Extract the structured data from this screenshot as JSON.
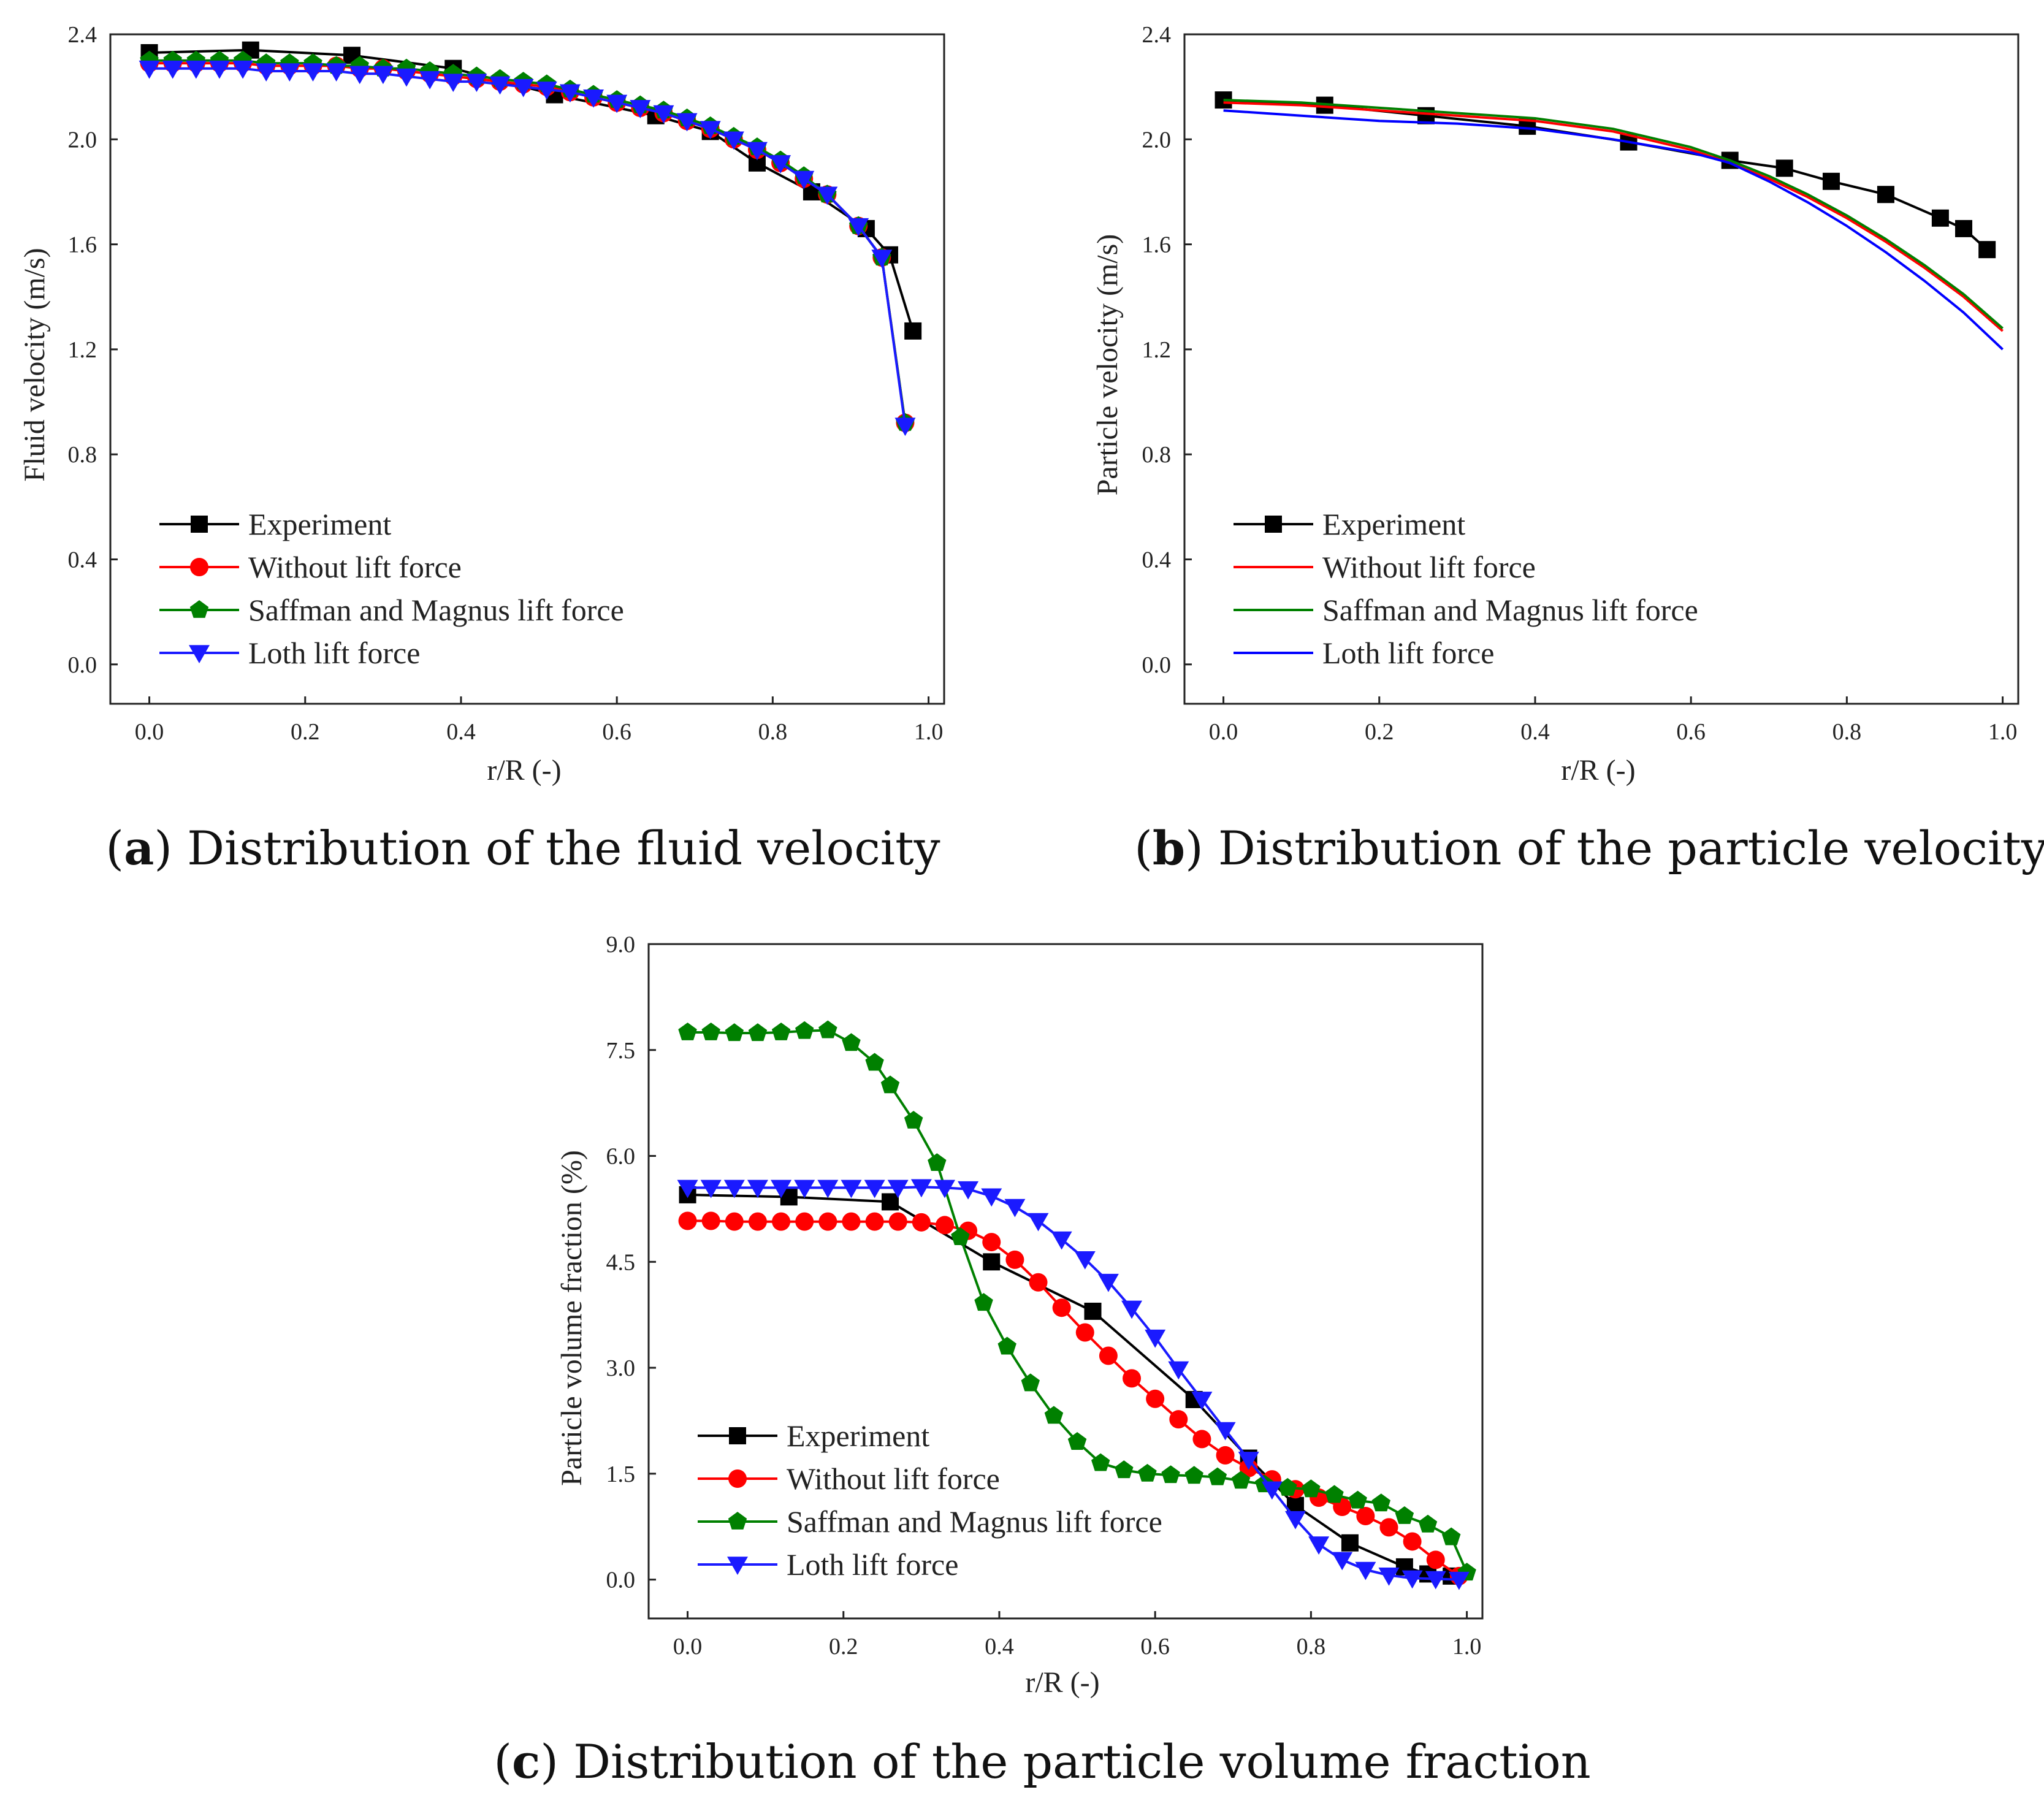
{
  "chart_data": [
    {
      "id": "a",
      "type": "line",
      "caption_letter": "a",
      "caption_text": "Distribution of the fluid velocity",
      "xlabel": "r/R (-)",
      "ylabel": "Fluid velocity (m/s)",
      "xlim": [
        -0.05,
        1.02
      ],
      "ylim": [
        -0.15,
        2.4
      ],
      "xticks": [
        "0.0",
        "0.2",
        "0.4",
        "0.6",
        "0.8",
        "1.0"
      ],
      "yticks": [
        "0.0",
        "0.4",
        "0.8",
        "1.2",
        "1.6",
        "2.0",
        "2.4"
      ],
      "legend_position": "lower-left",
      "series": [
        {
          "name": "Experiment",
          "color": "#000000",
          "marker": "square",
          "x": [
            0.0,
            0.13,
            0.26,
            0.39,
            0.52,
            0.65,
            0.72,
            0.78,
            0.85,
            0.92,
            0.95,
            0.98
          ],
          "y": [
            2.33,
            2.34,
            2.32,
            2.27,
            2.17,
            2.09,
            2.03,
            1.91,
            1.8,
            1.66,
            1.56,
            1.27
          ]
        },
        {
          "name": "Without lift force",
          "color": "#ff0000",
          "marker": "circle",
          "x": [
            0.0,
            0.03,
            0.06,
            0.09,
            0.12,
            0.15,
            0.18,
            0.21,
            0.24,
            0.27,
            0.3,
            0.33,
            0.36,
            0.39,
            0.42,
            0.45,
            0.48,
            0.51,
            0.54,
            0.57,
            0.6,
            0.63,
            0.66,
            0.69,
            0.72,
            0.75,
            0.78,
            0.81,
            0.84,
            0.87,
            0.91,
            0.94,
            0.97
          ],
          "y": [
            2.29,
            2.29,
            2.29,
            2.29,
            2.29,
            2.28,
            2.28,
            2.28,
            2.28,
            2.27,
            2.27,
            2.26,
            2.25,
            2.24,
            2.23,
            2.22,
            2.21,
            2.2,
            2.18,
            2.16,
            2.14,
            2.12,
            2.1,
            2.07,
            2.04,
            2.0,
            1.96,
            1.91,
            1.85,
            1.79,
            1.67,
            1.55,
            0.92
          ]
        },
        {
          "name": "Saffman and Magnus lift force",
          "color": "#008000",
          "marker": "pentagon",
          "x": [
            0.0,
            0.03,
            0.06,
            0.09,
            0.12,
            0.15,
            0.18,
            0.21,
            0.24,
            0.27,
            0.3,
            0.33,
            0.36,
            0.39,
            0.42,
            0.45,
            0.48,
            0.51,
            0.54,
            0.57,
            0.6,
            0.63,
            0.66,
            0.69,
            0.72,
            0.75,
            0.78,
            0.81,
            0.84,
            0.87,
            0.91,
            0.94,
            0.97
          ],
          "y": [
            2.3,
            2.3,
            2.3,
            2.3,
            2.3,
            2.29,
            2.29,
            2.29,
            2.28,
            2.28,
            2.27,
            2.27,
            2.26,
            2.25,
            2.24,
            2.23,
            2.22,
            2.21,
            2.19,
            2.17,
            2.15,
            2.13,
            2.11,
            2.08,
            2.05,
            2.01,
            1.97,
            1.92,
            1.86,
            1.79,
            1.67,
            1.55,
            0.92
          ]
        },
        {
          "name": "Loth lift force",
          "color": "#1a1aff",
          "marker": "triangle-down",
          "x": [
            0.0,
            0.03,
            0.06,
            0.09,
            0.12,
            0.15,
            0.18,
            0.21,
            0.24,
            0.27,
            0.3,
            0.33,
            0.36,
            0.39,
            0.42,
            0.45,
            0.48,
            0.51,
            0.54,
            0.57,
            0.6,
            0.63,
            0.66,
            0.69,
            0.72,
            0.75,
            0.78,
            0.81,
            0.84,
            0.87,
            0.91,
            0.94,
            0.97
          ],
          "y": [
            2.27,
            2.27,
            2.27,
            2.27,
            2.27,
            2.26,
            2.26,
            2.26,
            2.26,
            2.25,
            2.25,
            2.24,
            2.23,
            2.22,
            2.22,
            2.21,
            2.2,
            2.19,
            2.18,
            2.16,
            2.14,
            2.12,
            2.1,
            2.07,
            2.04,
            2.0,
            1.96,
            1.91,
            1.85,
            1.79,
            1.67,
            1.55,
            0.91
          ]
        }
      ]
    },
    {
      "id": "b",
      "type": "line",
      "caption_letter": "b",
      "caption_text": "Distribution of the particle velocity",
      "xlabel": "r/R (-)",
      "ylabel": "Particle velocity (m/s)",
      "xlim": [
        -0.05,
        1.02
      ],
      "ylim": [
        -0.15,
        2.4
      ],
      "xticks": [
        "0.0",
        "0.2",
        "0.4",
        "0.6",
        "0.8",
        "1.0"
      ],
      "yticks": [
        "0.0",
        "0.4",
        "0.8",
        "1.2",
        "1.6",
        "2.0",
        "2.4"
      ],
      "legend_position": "lower-left",
      "series": [
        {
          "name": "Experiment",
          "color": "#000000",
          "marker": "square",
          "x": [
            0.0,
            0.13,
            0.26,
            0.39,
            0.52,
            0.65,
            0.72,
            0.78,
            0.85,
            0.92,
            0.95,
            0.98
          ],
          "y": [
            2.15,
            2.13,
            2.09,
            2.05,
            1.99,
            1.92,
            1.89,
            1.84,
            1.79,
            1.7,
            1.66,
            1.58
          ]
        },
        {
          "name": "Without lift force",
          "color": "#ff0000",
          "marker": "none",
          "x": [
            0.0,
            0.1,
            0.2,
            0.3,
            0.4,
            0.5,
            0.6,
            0.65,
            0.7,
            0.75,
            0.8,
            0.85,
            0.9,
            0.95,
            1.0
          ],
          "y": [
            2.14,
            2.13,
            2.11,
            2.09,
            2.07,
            2.03,
            1.96,
            1.91,
            1.85,
            1.78,
            1.7,
            1.61,
            1.51,
            1.4,
            1.27
          ]
        },
        {
          "name": "Saffman and Magnus lift force",
          "color": "#008000",
          "marker": "none",
          "x": [
            0.0,
            0.1,
            0.2,
            0.3,
            0.4,
            0.5,
            0.6,
            0.65,
            0.7,
            0.75,
            0.8,
            0.85,
            0.9,
            0.95,
            1.0
          ],
          "y": [
            2.15,
            2.14,
            2.12,
            2.1,
            2.08,
            2.04,
            1.97,
            1.92,
            1.86,
            1.79,
            1.71,
            1.62,
            1.52,
            1.41,
            1.28
          ]
        },
        {
          "name": "Loth lift force",
          "color": "#0000ff",
          "marker": "none",
          "x": [
            0.0,
            0.1,
            0.2,
            0.3,
            0.4,
            0.5,
            0.6,
            0.65,
            0.7,
            0.75,
            0.8,
            0.85,
            0.9,
            0.95,
            1.0
          ],
          "y": [
            2.11,
            2.09,
            2.07,
            2.06,
            2.04,
            2.0,
            1.95,
            1.91,
            1.84,
            1.76,
            1.67,
            1.57,
            1.46,
            1.34,
            1.2
          ]
        }
      ]
    },
    {
      "id": "c",
      "type": "line",
      "caption_letter": "c",
      "caption_text": "Distribution of the particle volume fraction",
      "xlabel": "r/R (-)",
      "ylabel": "Particle volume fraction (%)",
      "xlim": [
        -0.05,
        1.02
      ],
      "ylim": [
        -0.55,
        9.0
      ],
      "xticks": [
        "0.0",
        "0.2",
        "0.4",
        "0.6",
        "0.8",
        "1.0"
      ],
      "yticks": [
        "0.0",
        "1.5",
        "3.0",
        "4.5",
        "6.0",
        "7.5",
        "9.0"
      ],
      "legend_position": "lower-left",
      "series": [
        {
          "name": "Experiment",
          "color": "#000000",
          "marker": "square",
          "x": [
            0.0,
            0.13,
            0.26,
            0.39,
            0.52,
            0.65,
            0.72,
            0.78,
            0.85,
            0.92,
            0.95,
            0.98
          ],
          "y": [
            5.45,
            5.42,
            5.35,
            4.5,
            3.8,
            2.55,
            1.72,
            1.05,
            0.52,
            0.18,
            0.08,
            0.05
          ]
        },
        {
          "name": "Without lift force",
          "color": "#ff0000",
          "marker": "circle",
          "x": [
            0.0,
            0.03,
            0.06,
            0.09,
            0.12,
            0.15,
            0.18,
            0.21,
            0.24,
            0.27,
            0.3,
            0.33,
            0.36,
            0.39,
            0.42,
            0.45,
            0.48,
            0.51,
            0.54,
            0.57,
            0.6,
            0.63,
            0.66,
            0.69,
            0.72,
            0.75,
            0.78,
            0.81,
            0.84,
            0.87,
            0.9,
            0.93,
            0.96,
            0.99
          ],
          "y": [
            5.08,
            5.08,
            5.07,
            5.07,
            5.07,
            5.07,
            5.07,
            5.07,
            5.07,
            5.07,
            5.06,
            5.02,
            4.94,
            4.78,
            4.53,
            4.21,
            3.85,
            3.5,
            3.17,
            2.85,
            2.56,
            2.27,
            1.99,
            1.76,
            1.58,
            1.42,
            1.28,
            1.16,
            1.03,
            0.9,
            0.74,
            0.54,
            0.28,
            0.05
          ]
        },
        {
          "name": "Saffman and Magnus lift force",
          "color": "#008000",
          "marker": "pentagon",
          "x": [
            0.0,
            0.03,
            0.06,
            0.09,
            0.12,
            0.15,
            0.18,
            0.21,
            0.24,
            0.26,
            0.29,
            0.32,
            0.35,
            0.38,
            0.41,
            0.44,
            0.47,
            0.5,
            0.53,
            0.56,
            0.59,
            0.62,
            0.65,
            0.68,
            0.71,
            0.74,
            0.77,
            0.8,
            0.83,
            0.86,
            0.89,
            0.92,
            0.95,
            0.98,
            1.0
          ],
          "y": [
            7.75,
            7.75,
            7.74,
            7.74,
            7.75,
            7.77,
            7.78,
            7.6,
            7.32,
            7.0,
            6.5,
            5.9,
            4.85,
            3.92,
            3.3,
            2.78,
            2.32,
            1.95,
            1.65,
            1.55,
            1.5,
            1.48,
            1.47,
            1.45,
            1.4,
            1.35,
            1.3,
            1.28,
            1.2,
            1.12,
            1.08,
            0.9,
            0.78,
            0.6,
            0.1
          ]
        },
        {
          "name": "Loth lift force",
          "color": "#1a1aff",
          "marker": "triangle-down",
          "x": [
            0.0,
            0.03,
            0.06,
            0.09,
            0.12,
            0.15,
            0.18,
            0.21,
            0.24,
            0.27,
            0.3,
            0.33,
            0.36,
            0.39,
            0.42,
            0.45,
            0.48,
            0.51,
            0.54,
            0.57,
            0.6,
            0.63,
            0.66,
            0.69,
            0.72,
            0.75,
            0.78,
            0.81,
            0.84,
            0.87,
            0.9,
            0.93,
            0.96,
            0.99
          ],
          "y": [
            5.55,
            5.55,
            5.55,
            5.55,
            5.55,
            5.55,
            5.55,
            5.55,
            5.55,
            5.55,
            5.56,
            5.55,
            5.53,
            5.43,
            5.28,
            5.08,
            4.82,
            4.54,
            4.22,
            3.84,
            3.43,
            2.98,
            2.55,
            2.12,
            1.7,
            1.28,
            0.86,
            0.5,
            0.28,
            0.14,
            0.06,
            0.02,
            0.01,
            0.0
          ]
        }
      ]
    }
  ]
}
